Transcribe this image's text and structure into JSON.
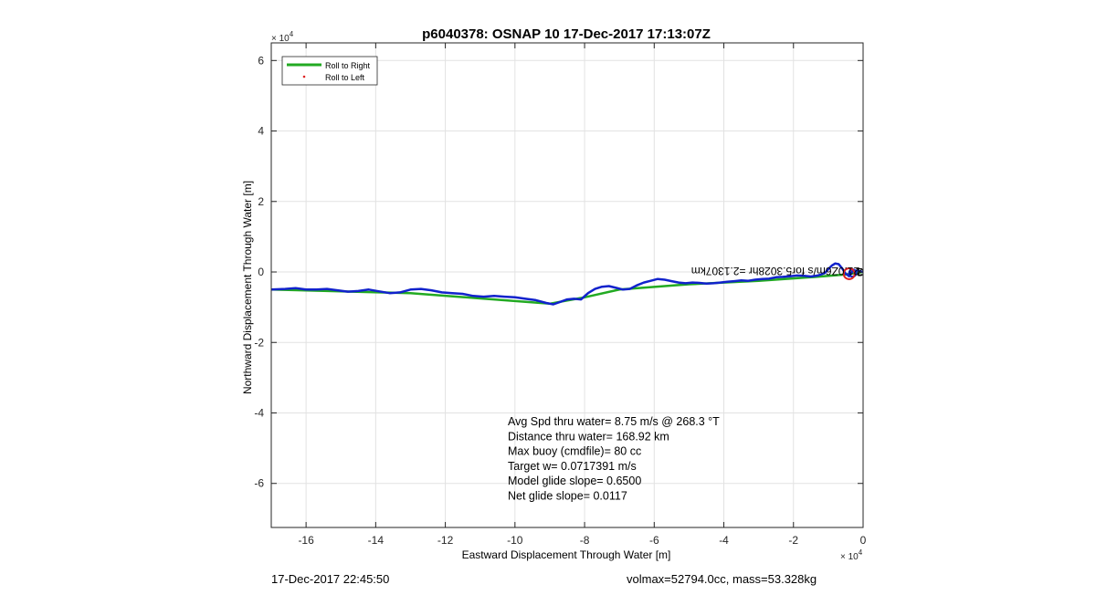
{
  "chart_data": {
    "type": "line",
    "title": "p6040378: OSNAP 10 17-Dec-2017 17:13:07Z",
    "xlabel": "Eastward Displacement Through Water [m]",
    "ylabel": "Northward Displacement Through Water [m]",
    "xlim": [
      -170000,
      0
    ],
    "ylim": [
      -72500,
      65000
    ],
    "x_exponent_label": "10^4",
    "y_exponent_label": "10^4",
    "x_ticks": [
      -160000,
      -140000,
      -120000,
      -100000,
      -80000,
      -60000,
      -40000,
      -20000,
      0
    ],
    "x_tick_labels": [
      "-16",
      "-14",
      "-12",
      "-10",
      "-8",
      "-6",
      "-4",
      "-2",
      "0"
    ],
    "y_ticks": [
      -60000,
      -40000,
      -20000,
      0,
      20000,
      40000,
      60000
    ],
    "y_tick_labels": [
      "-6",
      "-4",
      "-2",
      "0",
      "2",
      "4",
      "6"
    ],
    "grid": true,
    "legend": {
      "position": "top-left",
      "entries": [
        {
          "label": "Roll to Right",
          "color": "#22aa22",
          "marker": "line"
        },
        {
          "label": "Roll to Left",
          "color": "#dd2222",
          "marker": "dot"
        }
      ]
    },
    "series": [
      {
        "name": "Roll to Right",
        "color": "#22aa22",
        "x": [
          -170000,
          -150000,
          -130000,
          -110000,
          -90000,
          -80000,
          -70000,
          -50000,
          -30000,
          -15000,
          -5000,
          0
        ],
        "y": [
          -5000,
          -5500,
          -6000,
          -7500,
          -9000,
          -7200,
          -5000,
          -3500,
          -2500,
          -1500,
          -700,
          0
        ]
      },
      {
        "color": "#1122cc",
        "x": [
          -170000,
          -166000,
          -163000,
          -160000,
          -157000,
          -154000,
          -151000,
          -148000,
          -145000,
          -142000,
          -139000,
          -136000,
          -133000,
          -130000,
          -127000,
          -124000,
          -121000,
          -118000,
          -115000,
          -112000,
          -109000,
          -106000,
          -103000,
          -100000,
          -97000,
          -94000,
          -91000,
          -89000,
          -87000,
          -85000,
          -83000,
          -81000,
          -79000,
          -77000,
          -75000,
          -73000,
          -71000,
          -69000,
          -67000,
          -65000,
          -63000,
          -61000,
          -59000,
          -57000,
          -55000,
          -53000,
          -51000,
          -49000,
          -47000,
          -45000,
          -43000,
          -41000,
          -39000,
          -37000,
          -35000,
          -33000,
          -31000,
          -29000,
          -27000,
          -25000,
          -23000,
          -21000,
          -19000,
          -17000,
          -15000,
          -13000,
          -11000,
          -10000,
          -9000,
          -8000,
          -7000,
          -6000,
          -5000,
          -4000,
          -3000,
          -2000,
          -1000,
          0
        ],
        "y": [
          -5000,
          -4800,
          -4600,
          -5000,
          -5000,
          -4800,
          -5200,
          -5600,
          -5400,
          -5000,
          -5500,
          -6000,
          -5800,
          -5000,
          -4800,
          -5200,
          -5800,
          -6000,
          -6200,
          -6800,
          -7000,
          -6800,
          -7000,
          -7200,
          -7600,
          -8000,
          -8800,
          -9200,
          -8500,
          -7800,
          -7600,
          -7800,
          -6000,
          -4800,
          -4200,
          -4000,
          -4500,
          -5000,
          -4800,
          -3800,
          -3000,
          -2500,
          -2000,
          -2200,
          -2600,
          -3000,
          -3200,
          -3000,
          -3100,
          -3300,
          -3200,
          -3000,
          -2800,
          -2600,
          -2400,
          -2500,
          -2200,
          -2000,
          -1900,
          -1500,
          -1400,
          -1200,
          -1000,
          -1100,
          -1300,
          -1000,
          -300,
          800,
          1800,
          2400,
          2200,
          1000,
          -500,
          -1200,
          300,
          400,
          200,
          0
        ]
      },
      {
        "color": "#dd2222",
        "x": [
          -4000
        ],
        "y": [
          -500
        ]
      }
    ],
    "annotations": [
      {
        "text": "Avg Spd thru water=  8.75 m/s @ 268.3 °T"
      },
      {
        "text": "Distance thru water= 168.92 km"
      },
      {
        "text": "Max buoy (cmdfile)= 80 cc"
      },
      {
        "text": "Target w= 0.0717391 m/s"
      },
      {
        "text": "Model glide slope= 0.6500"
      },
      {
        "text": "Net glide slope= 0.0117"
      }
    ],
    "inverted_label": "21.0Z6m/s for5.3028hr =2.1307km",
    "end_labels": [
      "1",
      "2",
      "3"
    ]
  },
  "footer": {
    "left": "17-Dec-2017 22:45:50",
    "right": "volmax=52794.0cc, mass=53.328kg"
  }
}
